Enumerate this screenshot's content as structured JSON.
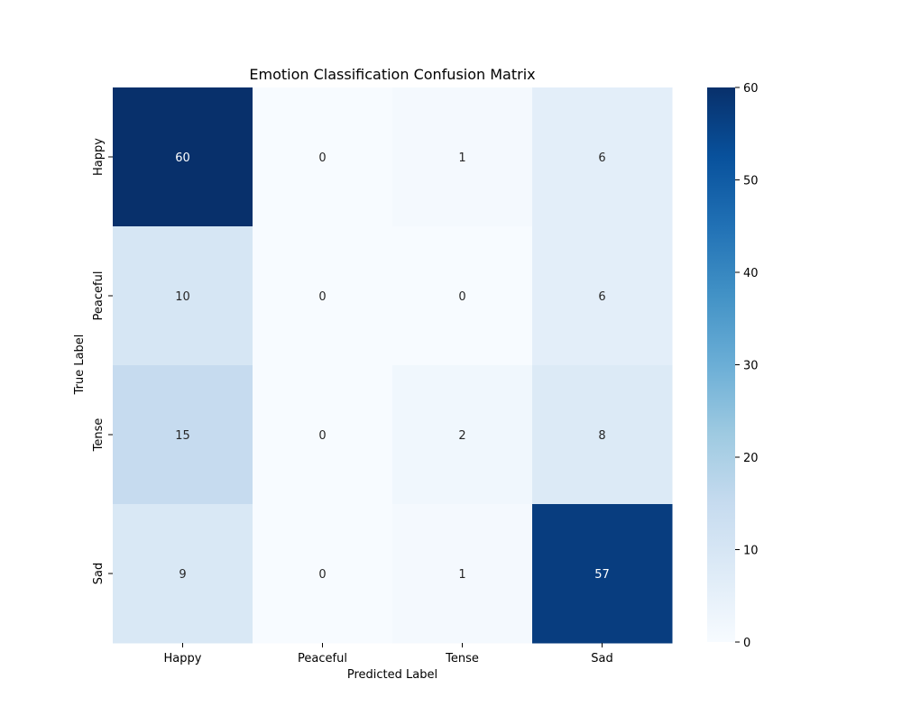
{
  "chart_data": {
    "type": "heatmap",
    "title": "Emotion Classification Confusion Matrix",
    "xlabel": "Predicted Label",
    "ylabel": "True Label",
    "x_categories": [
      "Happy",
      "Peaceful",
      "Tense",
      "Sad"
    ],
    "y_categories": [
      "Happy",
      "Peaceful",
      "Tense",
      "Sad"
    ],
    "values": [
      [
        60,
        0,
        1,
        6
      ],
      [
        10,
        0,
        0,
        6
      ],
      [
        15,
        0,
        2,
        8
      ],
      [
        9,
        0,
        1,
        57
      ]
    ],
    "colormap": "Blues",
    "vmin": 0,
    "vmax": 60,
    "colorbar_ticks": [
      0,
      10,
      20,
      30,
      40,
      50,
      60
    ],
    "annotations_shown": true,
    "grid": false
  }
}
